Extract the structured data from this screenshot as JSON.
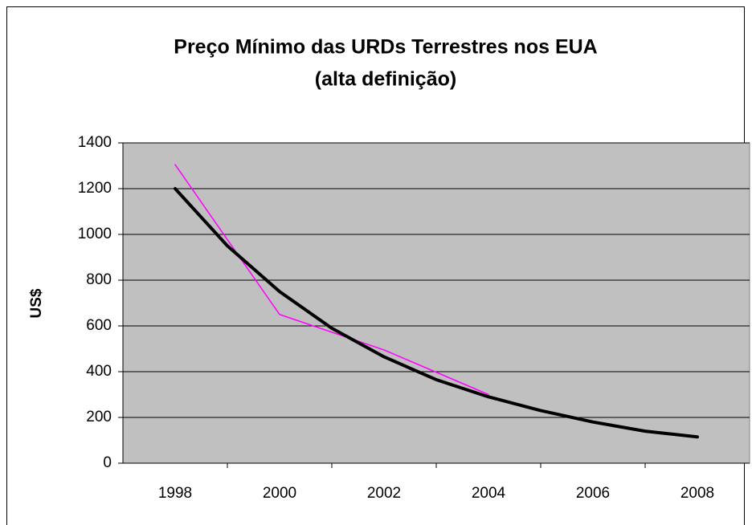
{
  "chart_data": {
    "type": "line",
    "title": [
      "Preço Mínimo das URDs Terrestres nos EUA",
      "(alta definição)"
    ],
    "y_label": "US$",
    "x": [
      1998,
      1999,
      2000,
      2001,
      2002,
      2003,
      2004,
      2005,
      2006,
      2007,
      2008
    ],
    "series": [
      {
        "color": "#ff00ff",
        "width": 1.5,
        "values": [
          1305,
          null,
          650,
          null,
          495,
          null,
          300,
          null,
          null,
          null,
          null
        ]
      },
      {
        "color": "#000000",
        "width": 4,
        "values": [
          1200,
          950,
          750,
          590,
          465,
          365,
          290,
          230,
          180,
          140,
          115
        ]
      }
    ],
    "xlim": [
      1997,
      2009
    ],
    "xticks": [
      1998,
      2000,
      2002,
      2004,
      2006,
      2008
    ],
    "ylim": [
      0,
      1400
    ],
    "yticks": [
      0,
      200,
      400,
      600,
      800,
      1000,
      1200,
      1400
    ],
    "grid": true,
    "plot_background": "#c0c0c0"
  }
}
